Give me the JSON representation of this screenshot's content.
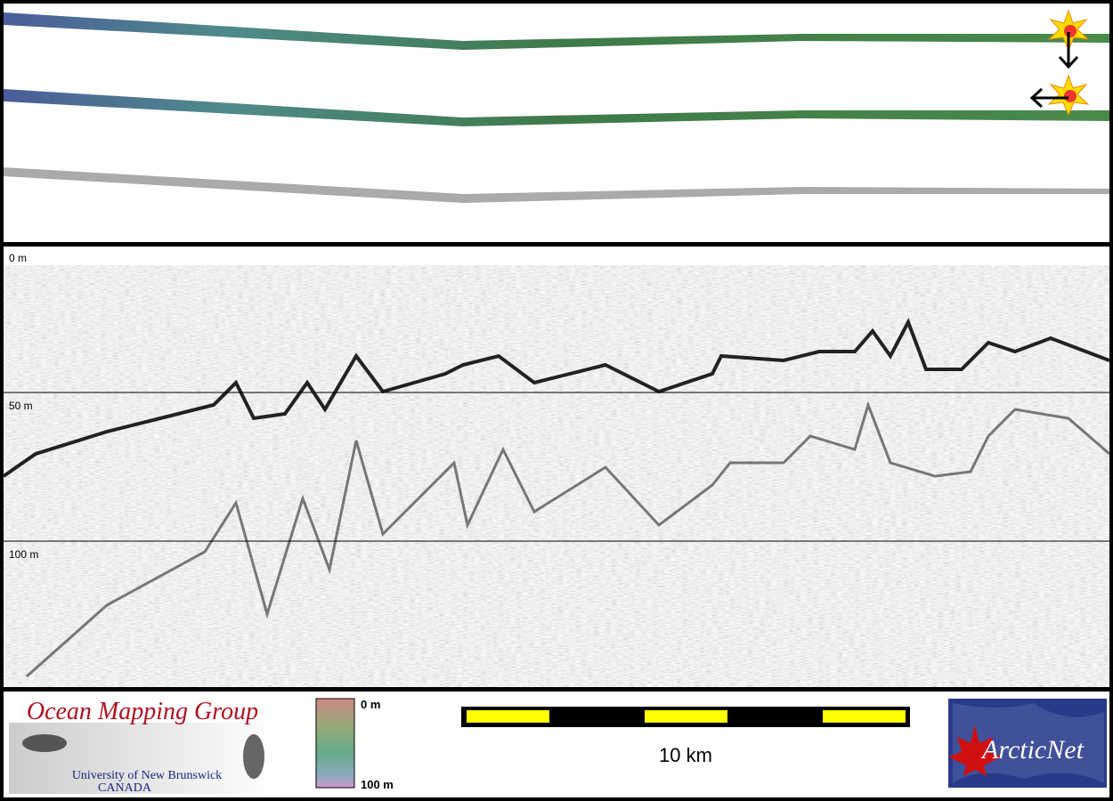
{
  "profile": {
    "depth_labels": [
      "0 m",
      "50 m",
      "100 m"
    ]
  },
  "footer": {
    "logo": {
      "title": "Ocean Mapping Group",
      "line1": "University of New Brunswick",
      "line2": "CANADA"
    },
    "color_scale": {
      "top": "0 m",
      "bottom": "100 m"
    },
    "scale_bar": {
      "label": "10 km"
    },
    "partner": {
      "name": "ArcticNet"
    }
  }
}
